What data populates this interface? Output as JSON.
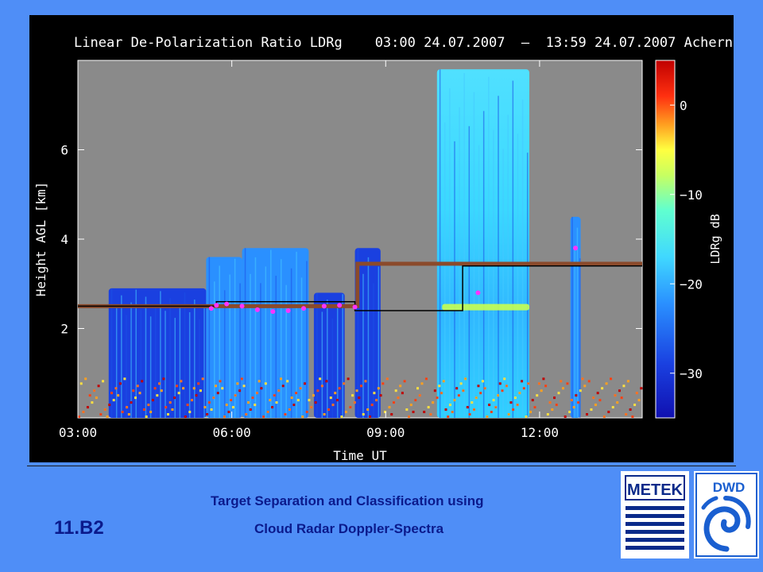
{
  "slide": {
    "number": "11.B2",
    "caption_line1": "Target Separation and Classification using",
    "caption_line2": "Cloud Radar Doppler-Spectra"
  },
  "logos": {
    "metek_text": "METEK",
    "dwd_text": "DWD"
  },
  "colors": {
    "slide_background": "#4f8ef7",
    "plot_background": "#8a8a8a",
    "caption_text": "#0b1a8c",
    "melting_layer_line": "#8b4a2b",
    "threshold_line": "#000000",
    "marker_points": "#ff33ff"
  },
  "chart_data": {
    "type": "heatmap",
    "title": "Linear De-Polarization Ratio LDRg    03:00 24.07.2007  —  13:59 24.07.2007 Achern",
    "xlabel": "Time UT",
    "ylabel": "Height AGL [km]",
    "x_ticks": [
      "03:00",
      "06:00",
      "09:00",
      "12:00"
    ],
    "x_tick_hours": [
      3,
      6,
      9,
      12
    ],
    "xlim_hours": [
      3.0,
      14.0
    ],
    "y_ticks": [
      "2",
      "4",
      "6"
    ],
    "y_tick_values": [
      2,
      4,
      6
    ],
    "ylim_km": [
      0.0,
      8.0
    ],
    "colorbar": {
      "label": "LDRg dB",
      "ticks": [
        "0",
        "−10",
        "−20",
        "−30"
      ],
      "tick_values": [
        0,
        -10,
        -20,
        -30
      ],
      "range": [
        -35,
        5
      ]
    },
    "cloud_regions": [
      {
        "name": "low-layer-1",
        "x0": 3.6,
        "x1": 5.5,
        "y0": 0.0,
        "y1": 2.9,
        "ldr": -27
      },
      {
        "name": "convective-1",
        "x0": 5.5,
        "x1": 6.2,
        "y0": 0.0,
        "y1": 3.6,
        "ldr": -20
      },
      {
        "name": "convective-2",
        "x0": 6.2,
        "x1": 7.5,
        "y0": 0.0,
        "y1": 3.8,
        "ldr": -22
      },
      {
        "name": "convective-3",
        "x0": 7.6,
        "x1": 8.2,
        "y0": 0.0,
        "y1": 2.8,
        "ldr": -26
      },
      {
        "name": "convective-4",
        "x0": 8.4,
        "x1": 8.9,
        "y0": 0.0,
        "y1": 3.8,
        "ldr": -24
      },
      {
        "name": "deep-cloud",
        "x0": 10.0,
        "x1": 11.8,
        "y0": 0.0,
        "y1": 7.8,
        "ldr": -19
      },
      {
        "name": "isolated-cell",
        "x0": 12.6,
        "x1": 12.8,
        "y0": 0.0,
        "y1": 4.5,
        "ldr": -21
      }
    ],
    "melting_layer_line": {
      "x": [
        3.0,
        8.45,
        8.45,
        14.0
      ],
      "y_km": [
        2.5,
        2.5,
        3.45,
        3.45
      ]
    },
    "threshold_line": {
      "x": [
        3.0,
        5.7,
        5.7,
        8.4,
        8.4,
        10.5,
        10.5,
        14.0
      ],
      "y_km": [
        2.5,
        2.5,
        2.6,
        2.6,
        2.4,
        2.4,
        3.4,
        3.4
      ]
    },
    "marker_points": {
      "x": [
        5.6,
        5.7,
        5.9,
        6.2,
        6.5,
        6.8,
        7.1,
        7.4,
        7.8,
        8.1,
        8.4,
        10.8,
        12.7
      ],
      "y_km": [
        2.45,
        2.52,
        2.55,
        2.5,
        2.42,
        2.38,
        2.4,
        2.45,
        2.5,
        2.52,
        2.48,
        2.8,
        3.8
      ]
    }
  }
}
